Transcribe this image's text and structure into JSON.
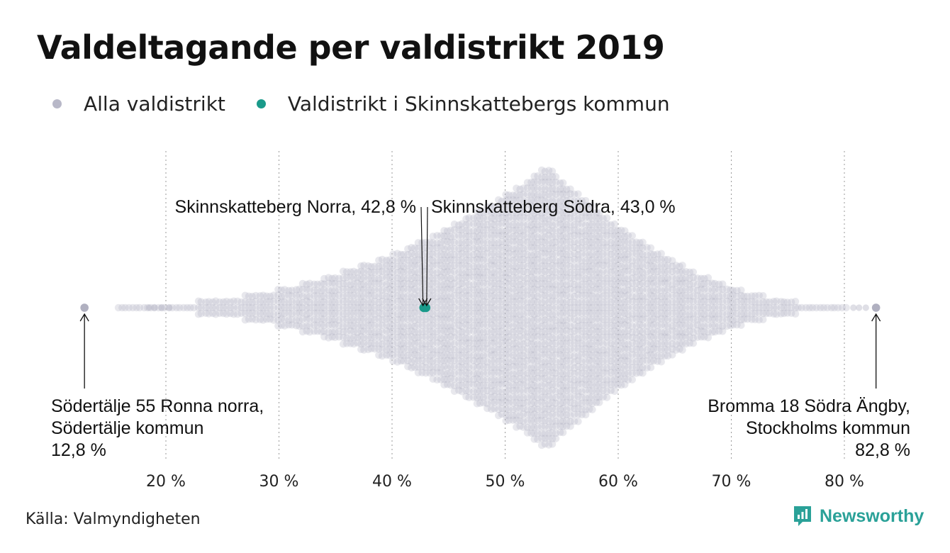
{
  "chart_data": {
    "type": "scatter",
    "subtype": "beeswarm",
    "title": "Valdeltagande per valdistrikt 2019",
    "x_range": [
      12,
      84
    ],
    "x_ticks": [
      20,
      30,
      40,
      50,
      60,
      70,
      80
    ],
    "x_tick_labels": [
      "20 %",
      "30 %",
      "40 %",
      "50 %",
      "60 %",
      "70 %",
      "80 %"
    ],
    "grid": "vertical dotted",
    "legend_placement": "top-left",
    "series": [
      {
        "name": "Alla valdistrikt",
        "color": "#b8b8c8",
        "density_peak_x": 53.8,
        "min": 12.8,
        "max": 82.8
      },
      {
        "name": "Valdistrikt i Skinnskattebergs kommun",
        "color": "#1a9a8a",
        "points": [
          {
            "label": "Skinnskatteberg Norra, 42,8 %",
            "x": 42.8
          },
          {
            "label": "Skinnskatteberg Södra, 43,0 %",
            "x": 43.0
          }
        ]
      }
    ],
    "annotations": [
      {
        "lines": [
          "Södertälje 55 Ronna norra,",
          "Södertälje kommun",
          "12,8 %"
        ],
        "x": 12.8,
        "align": "left"
      },
      {
        "lines": [
          "Bromma 18 Södra Ängby,",
          "Stockholms kommun",
          "82,8 %"
        ],
        "x": 82.8,
        "align": "right"
      },
      {
        "label": "Skinnskatteberg Norra, 42,8 %",
        "x": 42.8,
        "align": "right"
      },
      {
        "label": "Skinnskatteberg Södra, 43,0 %",
        "x": 43.0,
        "align": "left"
      }
    ]
  },
  "legend": {
    "items": [
      {
        "label": "Alla valdistrikt",
        "color": "#b8b8c8"
      },
      {
        "label": "Valdistrikt i Skinnskattebergs kommun",
        "color": "#1a9a8a"
      }
    ]
  },
  "footer": {
    "source": "Källa: Valmyndigheten",
    "brand": "Newsworthy",
    "brand_icon": "newsworthy-logo-icon"
  }
}
